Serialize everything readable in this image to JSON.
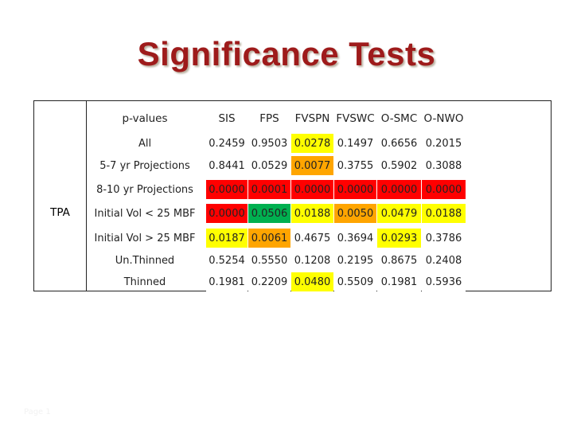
{
  "slide": {
    "title": "Significance Tests",
    "slide_number": "Page 1"
  },
  "table": {
    "corner_label": "p-values",
    "group_label": "TPA",
    "columns": [
      "SIS",
      "FPS",
      "FVSPN",
      "FVSWC",
      "O-SMC",
      "O-NWO"
    ],
    "rows": [
      {
        "label": "All",
        "cells": [
          {
            "v": "0.2459",
            "c": "#ffffff"
          },
          {
            "v": "0.9503",
            "c": "#ffffff"
          },
          {
            "v": "0.0278",
            "c": "#ffff00"
          },
          {
            "v": "0.1497",
            "c": "#ffffff"
          },
          {
            "v": "0.6656",
            "c": "#ffffff"
          },
          {
            "v": "0.2015",
            "c": "#ffffff"
          }
        ]
      },
      {
        "label": "5-7 yr Projections",
        "cells": [
          {
            "v": "0.8441",
            "c": "#ffffff"
          },
          {
            "v": "0.0529",
            "c": "#ffffff"
          },
          {
            "v": "0.0077",
            "c": "#ffa500"
          },
          {
            "v": "0.3755",
            "c": "#ffffff"
          },
          {
            "v": "0.5902",
            "c": "#ffffff"
          },
          {
            "v": "0.3088",
            "c": "#ffffff"
          }
        ]
      },
      {
        "label": "8-10 yr Projections",
        "cells": [
          {
            "v": "0.0000",
            "c": "#ff0000"
          },
          {
            "v": "0.0001",
            "c": "#ff0000"
          },
          {
            "v": "0.0000",
            "c": "#ff0000"
          },
          {
            "v": "0.0000",
            "c": "#ff0000"
          },
          {
            "v": "0.0000",
            "c": "#ff0000"
          },
          {
            "v": "0.0000",
            "c": "#ff0000"
          }
        ]
      },
      {
        "label": "Initial Vol < 25 MBF",
        "cells": [
          {
            "v": "0.0000",
            "c": "#ff0000"
          },
          {
            "v": "0.0506",
            "c": "#00b050"
          },
          {
            "v": "0.0188",
            "c": "#ffff00"
          },
          {
            "v": "0.0050",
            "c": "#ffa500"
          },
          {
            "v": "0.0479",
            "c": "#ffff00"
          },
          {
            "v": "0.0188",
            "c": "#ffff00"
          }
        ]
      },
      {
        "label": "Initial Vol > 25 MBF",
        "cells": [
          {
            "v": "0.0187",
            "c": "#ffff00"
          },
          {
            "v": "0.0061",
            "c": "#ffa500"
          },
          {
            "v": "0.4675",
            "c": "#ffffff"
          },
          {
            "v": "0.3694",
            "c": "#ffffff"
          },
          {
            "v": "0.0293",
            "c": "#ffff00"
          },
          {
            "v": "0.3786",
            "c": "#ffffff"
          }
        ]
      },
      {
        "label": "Un.Thinned",
        "cells": [
          {
            "v": "0.5254",
            "c": "#ffffff"
          },
          {
            "v": "0.5550",
            "c": "#ffffff"
          },
          {
            "v": "0.1208",
            "c": "#ffffff"
          },
          {
            "v": "0.2195",
            "c": "#ffffff"
          },
          {
            "v": "0.8675",
            "c": "#ffffff"
          },
          {
            "v": "0.2408",
            "c": "#ffffff"
          }
        ]
      },
      {
        "label": "Thinned",
        "cells": [
          {
            "v": "0.1981",
            "c": "#ffffff"
          },
          {
            "v": "0.2209",
            "c": "#ffffff"
          },
          {
            "v": "0.0480",
            "c": "#ffff00"
          },
          {
            "v": "0.5509",
            "c": "#ffffff"
          },
          {
            "v": "0.1981",
            "c": "#ffffff"
          },
          {
            "v": "0.5936",
            "c": "#ffffff"
          }
        ]
      }
    ]
  },
  "colors": {
    "title": "#9e1b1b",
    "significant_red": "#ff0000",
    "significant_orange": "#ffa500",
    "significant_yellow": "#ffff00",
    "significant_green": "#00b050"
  }
}
